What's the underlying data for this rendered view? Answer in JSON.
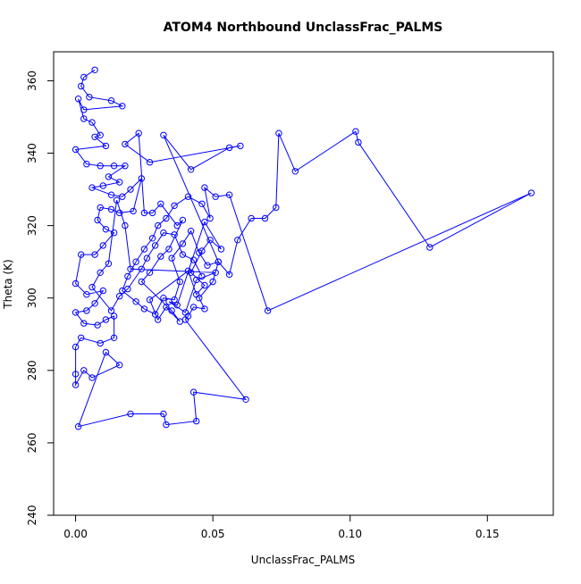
{
  "chart_data": {
    "type": "line",
    "title": "ATOM4 Northbound UnclassFrac_PALMS",
    "xlabel": "UnclassFrac_PALMS",
    "ylabel": "Theta (K)",
    "xlim": [
      -0.008,
      0.174
    ],
    "ylim": [
      240,
      368
    ],
    "x_ticks": [
      0.0,
      0.05,
      0.1,
      0.15
    ],
    "x_tick_labels": [
      "0.00",
      "0.05",
      "0.10",
      "0.15"
    ],
    "y_ticks": [
      240,
      260,
      280,
      300,
      320,
      340,
      360
    ],
    "y_tick_labels": [
      "240",
      "260",
      "280",
      "300",
      "320",
      "340",
      "360"
    ],
    "grid": false,
    "legend": "none",
    "series": [
      {
        "color": "#0000ff",
        "marker": "open-circle",
        "points": [
          [
            0.007,
            363.0
          ],
          [
            0.003,
            361.0
          ],
          [
            0.002,
            358.5
          ],
          [
            0.005,
            355.5
          ],
          [
            0.013,
            354.5
          ],
          [
            0.017,
            353.0
          ],
          [
            0.003,
            352.0
          ],
          [
            0.001,
            355.0
          ],
          [
            0.003,
            349.5
          ],
          [
            0.006,
            348.5
          ],
          [
            0.009,
            345.0
          ],
          [
            0.007,
            344.5
          ],
          [
            0.011,
            342.0
          ],
          [
            0.0,
            341.0
          ],
          [
            0.004,
            337.0
          ],
          [
            0.009,
            336.5
          ],
          [
            0.014,
            336.5
          ],
          [
            0.018,
            336.5
          ],
          [
            0.012,
            333.5
          ],
          [
            0.016,
            332.0
          ],
          [
            0.01,
            331.0
          ],
          [
            0.006,
            330.5
          ],
          [
            0.013,
            328.5
          ],
          [
            0.017,
            328.0
          ],
          [
            0.02,
            330.0
          ],
          [
            0.024,
            333.0
          ],
          [
            0.021,
            324.0
          ],
          [
            0.016,
            323.5
          ],
          [
            0.013,
            324.5
          ],
          [
            0.009,
            325.0
          ],
          [
            0.008,
            321.5
          ],
          [
            0.011,
            319.0
          ],
          [
            0.014,
            318.0
          ],
          [
            0.01,
            314.5
          ],
          [
            0.007,
            312.0
          ],
          [
            0.002,
            312.0
          ],
          [
            0.0,
            304.0
          ],
          [
            0.004,
            301.0
          ],
          [
            0.01,
            302.0
          ],
          [
            0.007,
            298.5
          ],
          [
            0.004,
            296.5
          ],
          [
            0.0,
            296.0
          ],
          [
            0.003,
            293.0
          ],
          [
            0.008,
            292.5
          ],
          [
            0.011,
            294.0
          ],
          [
            0.014,
            295.0
          ],
          [
            0.014,
            289.0
          ],
          [
            0.009,
            287.5
          ],
          [
            0.002,
            289.0
          ],
          [
            0.0,
            286.5
          ],
          [
            0.0,
            279.0
          ],
          [
            0.0,
            276.0
          ],
          [
            0.003,
            280.0
          ],
          [
            0.006,
            278.0
          ],
          [
            0.016,
            281.5
          ],
          [
            0.011,
            285.0
          ],
          [
            0.001,
            264.5
          ],
          [
            0.02,
            268.0
          ],
          [
            0.032,
            268.0
          ],
          [
            0.033,
            265.0
          ],
          [
            0.044,
            266.0
          ],
          [
            0.043,
            274.0
          ],
          [
            0.062,
            272.0
          ],
          [
            0.04,
            294.0
          ],
          [
            0.041,
            295.0
          ],
          [
            0.043,
            297.5
          ],
          [
            0.047,
            297.0
          ],
          [
            0.045,
            300.0
          ],
          [
            0.05,
            304.5
          ],
          [
            0.052,
            310.0
          ],
          [
            0.056,
            306.5
          ],
          [
            0.059,
            316.0
          ],
          [
            0.064,
            322.0
          ],
          [
            0.069,
            322.0
          ],
          [
            0.073,
            325.0
          ],
          [
            0.074,
            345.5
          ],
          [
            0.08,
            335.0
          ],
          [
            0.102,
            346.0
          ],
          [
            0.103,
            343.0
          ],
          [
            0.129,
            314.0
          ],
          [
            0.166,
            329.0
          ],
          [
            0.07,
            296.5
          ],
          [
            0.056,
            328.5
          ],
          [
            0.051,
            328.0
          ],
          [
            0.047,
            330.5
          ],
          [
            0.049,
            322.0
          ],
          [
            0.046,
            326.0
          ],
          [
            0.041,
            328.0
          ],
          [
            0.036,
            325.5
          ],
          [
            0.033,
            322.0
          ],
          [
            0.03,
            320.0
          ],
          [
            0.028,
            316.5
          ],
          [
            0.025,
            313.5
          ],
          [
            0.022,
            310.0
          ],
          [
            0.019,
            306.0
          ],
          [
            0.017,
            302.0
          ],
          [
            0.022,
            299.0
          ],
          [
            0.025,
            297.0
          ],
          [
            0.029,
            295.5
          ],
          [
            0.032,
            300.0
          ],
          [
            0.036,
            299.5
          ],
          [
            0.038,
            304.5
          ],
          [
            0.035,
            311.0
          ],
          [
            0.039,
            315.0
          ],
          [
            0.042,
            318.5
          ],
          [
            0.045,
            312.5
          ],
          [
            0.048,
            309.0
          ],
          [
            0.052,
            310.0
          ],
          [
            0.032,
            345.0
          ],
          [
            0.042,
            335.5
          ],
          [
            0.056,
            341.5
          ],
          [
            0.06,
            342.0
          ],
          [
            0.027,
            337.5
          ],
          [
            0.018,
            342.5
          ],
          [
            0.023,
            345.5
          ],
          [
            0.025,
            323.5
          ],
          [
            0.028,
            323.5
          ],
          [
            0.031,
            326.0
          ],
          [
            0.037,
            320.0
          ],
          [
            0.039,
            321.5
          ],
          [
            0.034,
            313.5
          ],
          [
            0.031,
            311.5
          ],
          [
            0.027,
            307.0
          ],
          [
            0.024,
            304.5
          ],
          [
            0.035,
            296.5
          ],
          [
            0.038,
            293.5
          ],
          [
            0.033,
            297.5
          ],
          [
            0.03,
            294.0
          ],
          [
            0.027,
            299.5
          ],
          [
            0.041,
            307.5
          ],
          [
            0.044,
            301.0
          ],
          [
            0.047,
            303.5
          ],
          [
            0.042,
            307.0
          ],
          [
            0.046,
            313.0
          ],
          [
            0.049,
            316.0
          ],
          [
            0.053,
            313.5
          ],
          [
            0.047,
            321.0
          ],
          [
            0.037,
            298.0
          ],
          [
            0.034,
            299.0
          ],
          [
            0.04,
            296.0
          ],
          [
            0.044,
            305.0
          ],
          [
            0.051,
            307.0
          ],
          [
            0.02,
            308.0
          ],
          [
            0.018,
            320.0
          ],
          [
            0.015,
            327.0
          ],
          [
            0.012,
            309.5
          ],
          [
            0.009,
            307.0
          ],
          [
            0.006,
            303.0
          ],
          [
            0.013,
            296.5
          ],
          [
            0.016,
            300.5
          ],
          [
            0.019,
            302.5
          ],
          [
            0.024,
            308.0
          ],
          [
            0.026,
            311.0
          ],
          [
            0.029,
            314.5
          ],
          [
            0.032,
            318.0
          ],
          [
            0.036,
            317.5
          ],
          [
            0.039,
            312.0
          ],
          [
            0.043,
            310.5
          ],
          [
            0.046,
            306.0
          ]
        ]
      }
    ]
  }
}
